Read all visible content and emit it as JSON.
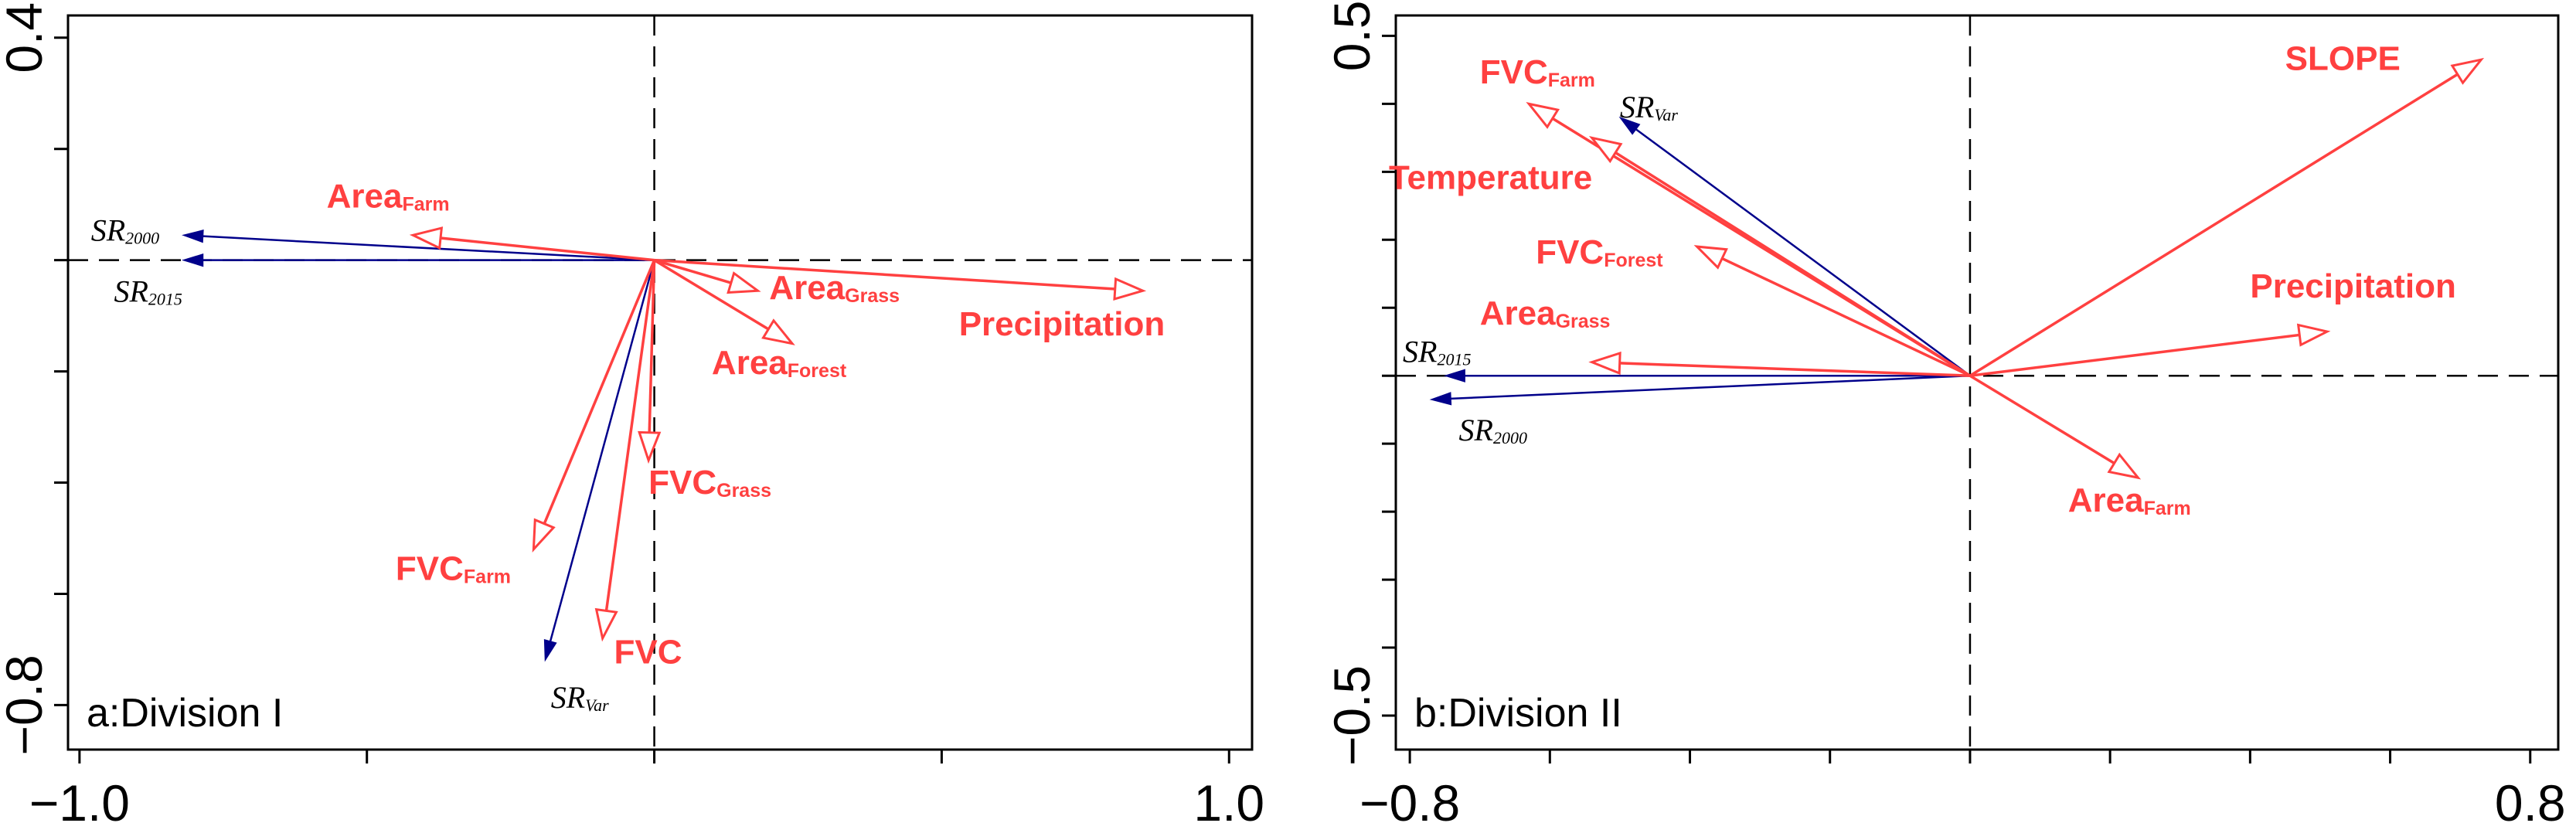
{
  "colors": {
    "env": "#ff4040",
    "species": "#00008b",
    "axis": "#000000"
  },
  "chart_data": [
    {
      "type": "biplot",
      "panel_label": "a:Division I",
      "xlim": [
        -1.02,
        1.04
      ],
      "ylim": [
        -0.88,
        0.44
      ],
      "xticks": [
        -1.0,
        -0.5,
        0.0,
        0.5,
        1.0
      ],
      "xtick_labels": [
        "−1.0",
        "",
        "",
        "",
        "1.0"
      ],
      "yticks": [
        -0.8,
        -0.6,
        -0.4,
        -0.2,
        0.0,
        0.2,
        0.4
      ],
      "ytick_labels": [
        "−0.8",
        "",
        "",
        "",
        "",
        "",
        "0.4"
      ],
      "env_vectors": [
        {
          "main": "Area",
          "sub": "Farm",
          "x": -0.42,
          "y": 0.045,
          "lx": -0.57,
          "ly": 0.095
        },
        {
          "main": "Area",
          "sub": "Grass",
          "x": 0.18,
          "y": -0.055,
          "lx": 0.2,
          "ly": -0.07
        },
        {
          "main": "Area",
          "sub": "Forest",
          "x": 0.24,
          "y": -0.15,
          "lx": 0.1,
          "ly": -0.205
        },
        {
          "main": "Precipitation",
          "sub": "",
          "x": 0.85,
          "y": -0.055,
          "lx": 0.53,
          "ly": -0.135
        },
        {
          "main": "FVC",
          "sub": "Grass",
          "x": -0.01,
          "y": -0.36,
          "lx": -0.01,
          "ly": -0.42
        },
        {
          "main": "FVC",
          "sub": "Farm",
          "x": -0.21,
          "y": -0.52,
          "lx": -0.45,
          "ly": -0.575
        },
        {
          "main": "FVC",
          "sub": "",
          "x": -0.09,
          "y": -0.68,
          "lx": -0.07,
          "ly": -0.725
        }
      ],
      "species_vectors": [
        {
          "main": "SR",
          "sub": "2000",
          "x": -0.82,
          "y": 0.045,
          "lx": -0.98,
          "ly": 0.035
        },
        {
          "main": "SR",
          "sub": "2015",
          "x": -0.82,
          "y": 0.0,
          "lx": -0.94,
          "ly": -0.075
        },
        {
          "main": "SR",
          "sub": "Var",
          "x": -0.19,
          "y": -0.72,
          "lx": -0.18,
          "ly": -0.805
        }
      ]
    },
    {
      "type": "biplot",
      "panel_label": "b:Division II",
      "xlim": [
        -0.82,
        0.84
      ],
      "ylim": [
        -0.55,
        0.53
      ],
      "xticks": [
        -0.8,
        -0.6,
        -0.4,
        -0.2,
        0.0,
        0.2,
        0.4,
        0.6,
        0.8
      ],
      "xtick_labels": [
        "−0.8",
        "",
        "",
        "",
        "",
        "",
        "",
        "",
        "0.8"
      ],
      "yticks": [
        -0.5,
        -0.4,
        -0.3,
        -0.2,
        -0.1,
        0.0,
        0.1,
        0.2,
        0.3,
        0.4,
        0.5
      ],
      "ytick_labels": [
        "−0.5",
        "",
        "",
        "",
        "",
        "",
        "",
        "",
        "",
        "",
        "0.5"
      ],
      "env_vectors": [
        {
          "main": "SLOPE",
          "sub": "",
          "x": 0.73,
          "y": 0.465,
          "lx": 0.45,
          "ly": 0.45
        },
        {
          "main": "FVC",
          "sub": "Farm",
          "x": -0.63,
          "y": 0.4,
          "lx": -0.7,
          "ly": 0.43
        },
        {
          "main": "Temperature",
          "sub": "",
          "x": -0.54,
          "y": 0.35,
          "lx": -0.83,
          "ly": 0.275
        },
        {
          "main": "FVC",
          "sub": "Forest",
          "x": -0.39,
          "y": 0.19,
          "lx": -0.62,
          "ly": 0.165
        },
        {
          "main": "Area",
          "sub": "Grass",
          "x": -0.54,
          "y": 0.02,
          "lx": -0.7,
          "ly": 0.075
        },
        {
          "main": "Precipitation",
          "sub": "",
          "x": 0.51,
          "y": 0.065,
          "lx": 0.4,
          "ly": 0.115
        },
        {
          "main": "Area",
          "sub": "Farm",
          "x": 0.24,
          "y": -0.15,
          "lx": 0.14,
          "ly": -0.2
        }
      ],
      "species_vectors": [
        {
          "main": "SR",
          "sub": "Var",
          "x": -0.5,
          "y": 0.38,
          "lx": -0.5,
          "ly": 0.38
        },
        {
          "main": "SR",
          "sub": "2015",
          "x": -0.75,
          "y": 0.0,
          "lx": -0.81,
          "ly": 0.02
        },
        {
          "main": "SR",
          "sub": "2000",
          "x": -0.77,
          "y": -0.035,
          "lx": -0.73,
          "ly": -0.095
        }
      ]
    }
  ]
}
